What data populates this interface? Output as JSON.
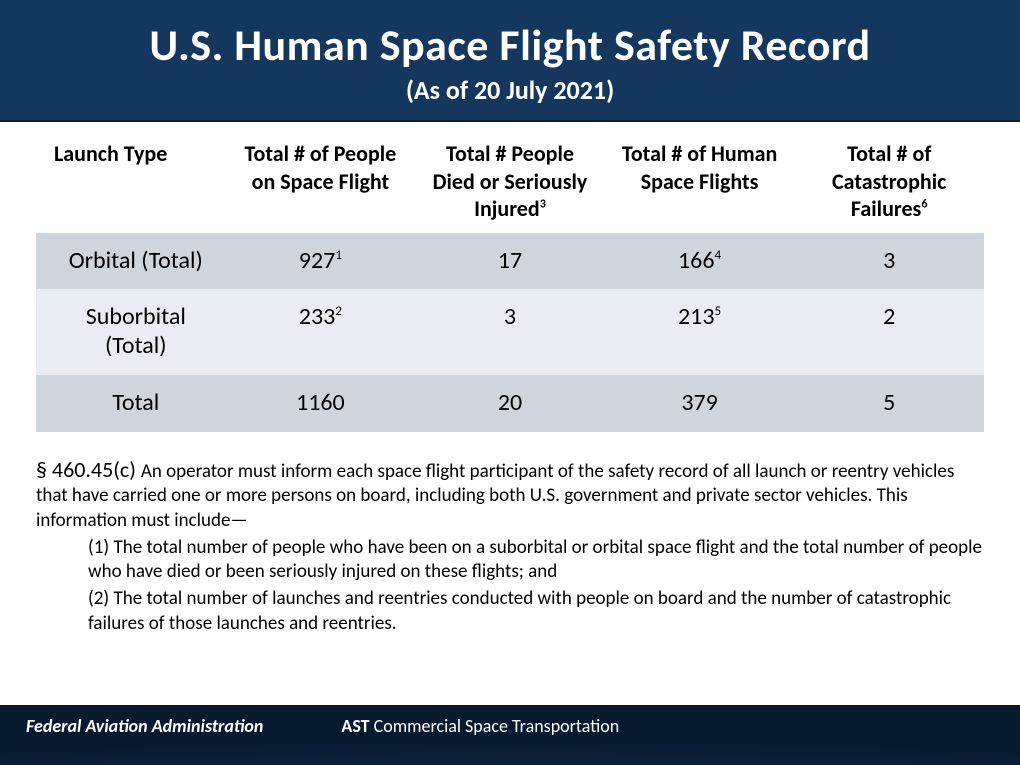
{
  "header": {
    "title": "U.S. Human Space Flight Safety Record",
    "subtitle": "(As of 20 July 2021)",
    "background_color": "#15375e",
    "text_color": "#ffffff",
    "title_fontsize": 44,
    "subtitle_fontsize": 26
  },
  "table": {
    "type": "table",
    "header_fontsize": 22,
    "cell_fontsize": 24,
    "row_colors": [
      "#cfd5dd",
      "#e9edf3",
      "#cfd5dd"
    ],
    "columns": [
      {
        "label": "Launch Type",
        "sup": "",
        "align": "left"
      },
      {
        "label": "Total # of People on Space Flight",
        "sup": "",
        "align": "center"
      },
      {
        "label": "Total # People Died or Seriously Injured",
        "sup": "3",
        "align": "center"
      },
      {
        "label": "Total # of Human Space Flights",
        "sup": "",
        "align": "center"
      },
      {
        "label": "Total # of Catastrophic Failures",
        "sup": "6",
        "align": "center"
      }
    ],
    "rows": [
      {
        "cells": [
          {
            "value": "Orbital (Total)",
            "sup": ""
          },
          {
            "value": "927",
            "sup": "1"
          },
          {
            "value": "17",
            "sup": ""
          },
          {
            "value": "166",
            "sup": "4"
          },
          {
            "value": "3",
            "sup": ""
          }
        ]
      },
      {
        "cells": [
          {
            "value": "Suborbital (Total)",
            "sup": ""
          },
          {
            "value": "233",
            "sup": "2"
          },
          {
            "value": "3",
            "sup": ""
          },
          {
            "value": "213",
            "sup": "5"
          },
          {
            "value": "2",
            "sup": ""
          }
        ]
      },
      {
        "cells": [
          {
            "value": "Total",
            "sup": ""
          },
          {
            "value": "1160",
            "sup": ""
          },
          {
            "value": "20",
            "sup": ""
          },
          {
            "value": "379",
            "sup": ""
          },
          {
            "value": "5",
            "sup": ""
          }
        ]
      }
    ]
  },
  "legal": {
    "lead": "§ 460.45(c) ",
    "body": "An operator must inform each space flight participant of the safety record of all launch or reentry vehicles that have carried one or more persons on board, including both U.S. government and private sector vehicles. This information must include—",
    "item1": "(1) The total number of people who have been on a suborbital or orbital space flight and the total number of people who have died or been seriously injured on these flights; and",
    "item2": "(2) The total number of launches and reentries conducted with people on board and the number of catastrophic failures of those launches and reentries.",
    "fontsize": 19,
    "lead_fontsize": 22
  },
  "footer": {
    "faa": "Federal Aviation Administration",
    "ast_bold": "AST ",
    "ast_rest": "Commercial Space Transportation",
    "background": "radial-gradient dark blue earth glow",
    "text_color": "#ffffff",
    "fontsize": 18
  }
}
